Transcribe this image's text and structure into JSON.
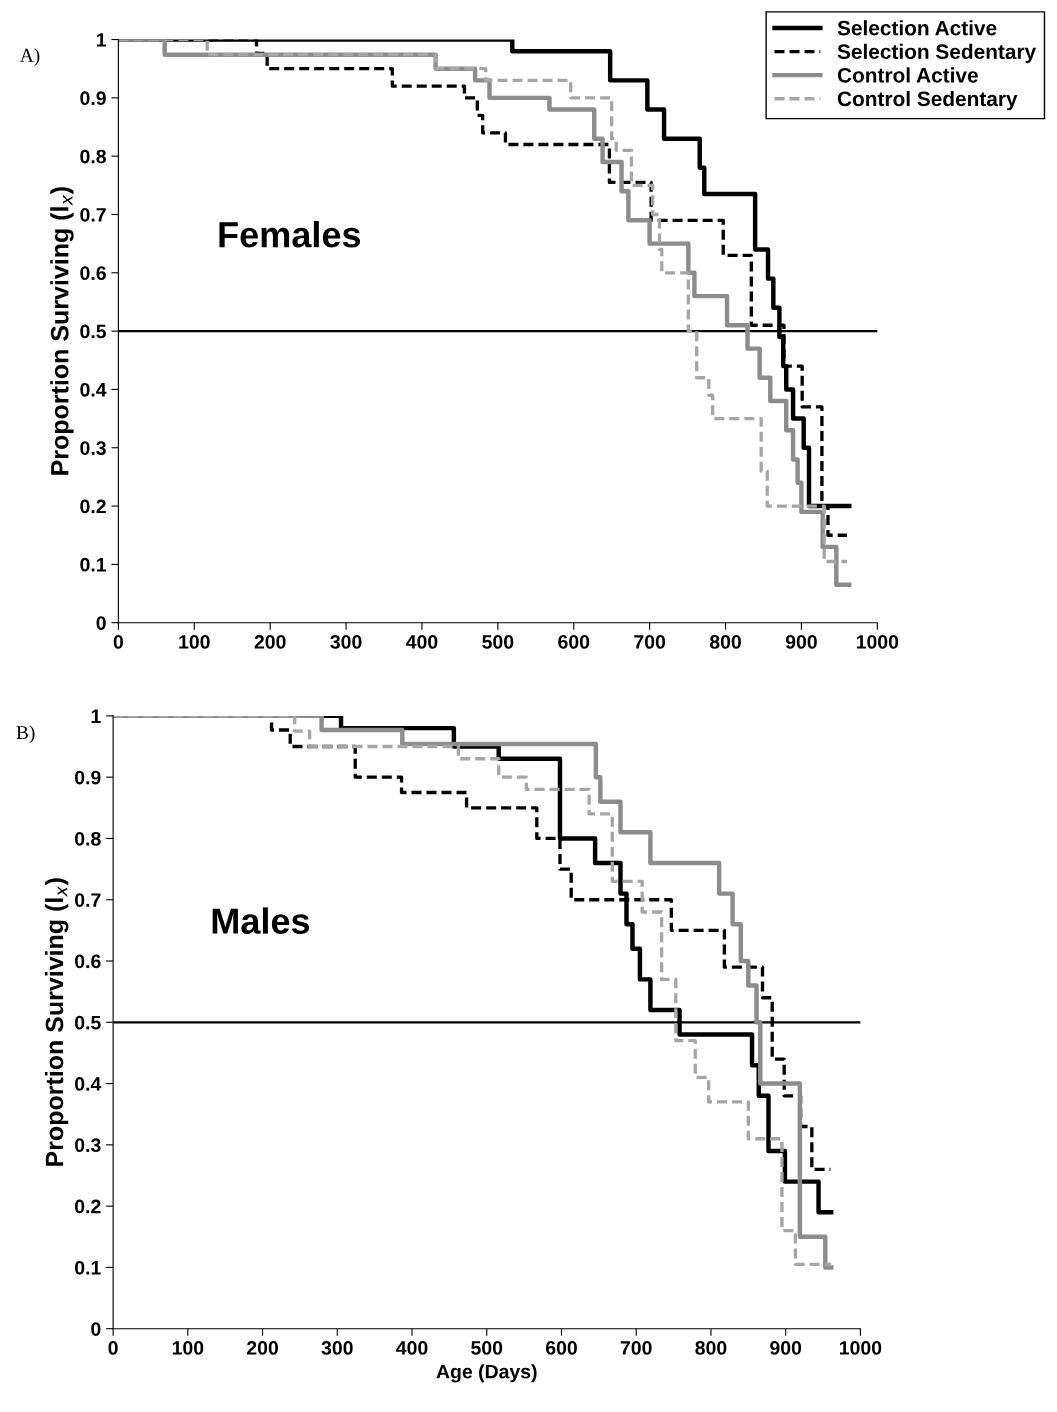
{
  "chart_data": [
    {
      "type": "step",
      "ylabel": "Proportion Surviving (l$_{x}$)",
      "annotations": [
        "A)",
        "Females"
      ],
      "legend": "top right",
      "xlim": [
        0,
        1000
      ],
      "ylim": [
        0,
        1
      ],
      "xticks": [
        0,
        100,
        200,
        300,
        400,
        500,
        600,
        700,
        800,
        900,
        1000
      ],
      "yticks": [
        0,
        0.1,
        0.2,
        0.3,
        0.4,
        0.5,
        0.6,
        0.7,
        0.8,
        0.9,
        1
      ],
      "ref_lines": [
        {
          "axis": "y",
          "value": 0.5,
          "color": "#000000"
        }
      ],
      "series": [
        {
          "name": "Selection Active",
          "color": "#000000",
          "line_style": "solid",
          "x": [
            0,
            519,
            648,
            697,
            719,
            766,
            772,
            839,
            856,
            863,
            871,
            876,
            880,
            889,
            903,
            910,
            963
          ],
          "values": [
            1,
            0.98,
            0.93,
            0.88,
            0.83,
            0.78,
            0.735,
            0.64,
            0.59,
            0.54,
            0.49,
            0.44,
            0.4,
            0.35,
            0.3,
            0.2,
            0.2
          ]
        },
        {
          "name": "Selection Sedentary",
          "color": "#000000",
          "line_style": "dashed",
          "x": [
            0,
            182,
            196,
            361,
            456,
            473,
            480,
            510,
            647,
            702,
            797,
            834,
            877,
            901,
            927,
            935,
            960
          ],
          "values": [
            1,
            0.976,
            0.95,
            0.92,
            0.9,
            0.87,
            0.84,
            0.82,
            0.755,
            0.69,
            0.63,
            0.51,
            0.44,
            0.37,
            0.2,
            0.15,
            0.15
          ]
        },
        {
          "name": "Control Active",
          "color": "#8c8c8c",
          "line_style": "solid",
          "x": [
            0,
            61,
            418,
            470,
            489,
            568,
            627,
            638,
            663,
            672,
            700,
            751,
            759,
            802,
            829,
            845,
            859,
            880,
            889,
            895,
            900,
            928,
            946,
            963
          ],
          "values": [
            1,
            0.974,
            0.95,
            0.93,
            0.9,
            0.88,
            0.83,
            0.79,
            0.74,
            0.69,
            0.65,
            0.6,
            0.56,
            0.51,
            0.47,
            0.42,
            0.38,
            0.33,
            0.28,
            0.24,
            0.19,
            0.13,
            0.065,
            0.065
          ]
        },
        {
          "name": "Control Sedentary",
          "color": "#a6a6a6",
          "line_style": "dashed",
          "x": [
            0,
            117,
            418,
            484,
            596,
            650,
            656,
            676,
            704,
            713,
            716,
            751,
            762,
            778,
            783,
            847,
            855,
            930,
            960
          ],
          "values": [
            1,
            0.974,
            0.95,
            0.93,
            0.9,
            0.83,
            0.81,
            0.75,
            0.7,
            0.64,
            0.6,
            0.5,
            0.42,
            0.39,
            0.35,
            0.26,
            0.2,
            0.105,
            0.105
          ]
        }
      ]
    },
    {
      "type": "step",
      "xlabel": "Age (Days)",
      "ylabel": "Proportion Surviving (l$_{x}$)",
      "annotations": [
        "B)",
        "Males"
      ],
      "legend": false,
      "xlim": [
        0,
        1000
      ],
      "ylim": [
        0,
        1
      ],
      "xticks": [
        0,
        100,
        200,
        300,
        400,
        500,
        600,
        700,
        800,
        900,
        1000
      ],
      "yticks": [
        0,
        0.1,
        0.2,
        0.3,
        0.4,
        0.5,
        0.6,
        0.7,
        0.8,
        0.9,
        1
      ],
      "ref_lines": [
        {
          "axis": "y",
          "value": 0.5,
          "color": "#000000"
        }
      ],
      "series": [
        {
          "color": "#000000",
          "line_style": "solid",
          "x": [
            0,
            305,
            456,
            516,
            598,
            645,
            679,
            687,
            695,
            705,
            719,
            758,
            855,
            864,
            877,
            899,
            944,
            961
          ],
          "values": [
            1,
            0.98,
            0.95,
            0.93,
            0.8,
            0.76,
            0.71,
            0.66,
            0.62,
            0.57,
            0.52,
            0.48,
            0.43,
            0.38,
            0.29,
            0.24,
            0.19,
            0.19
          ]
        },
        {
          "color": "#000000",
          "line_style": "dashed",
          "x": [
            0,
            212,
            237,
            324,
            386,
            473,
            567,
            598,
            613,
            747,
            818,
            869,
            882,
            898,
            920,
            935,
            960
          ],
          "values": [
            1,
            0.977,
            0.95,
            0.9,
            0.875,
            0.85,
            0.8,
            0.75,
            0.7,
            0.65,
            0.59,
            0.54,
            0.44,
            0.38,
            0.33,
            0.26,
            0.26
          ]
        },
        {
          "color": "#8c8c8c",
          "line_style": "solid",
          "x": [
            0,
            279,
            387,
            646,
            652,
            679,
            719,
            811,
            829,
            840,
            850,
            861,
            866,
            919,
            953,
            961
          ],
          "values": [
            1,
            0.977,
            0.954,
            0.9,
            0.86,
            0.81,
            0.76,
            0.71,
            0.66,
            0.6,
            0.56,
            0.5,
            0.4,
            0.15,
            0.1,
            0.1
          ]
        },
        {
          "color": "#a6a6a6",
          "line_style": "dashed",
          "x": [
            0,
            243,
            263,
            462,
            516,
            553,
            637,
            668,
            708,
            734,
            753,
            779,
            797,
            850,
            895,
            913,
            961
          ],
          "values": [
            1,
            0.975,
            0.95,
            0.93,
            0.9,
            0.88,
            0.84,
            0.73,
            0.68,
            0.57,
            0.47,
            0.41,
            0.37,
            0.31,
            0.16,
            0.105,
            0.105
          ]
        }
      ]
    }
  ]
}
